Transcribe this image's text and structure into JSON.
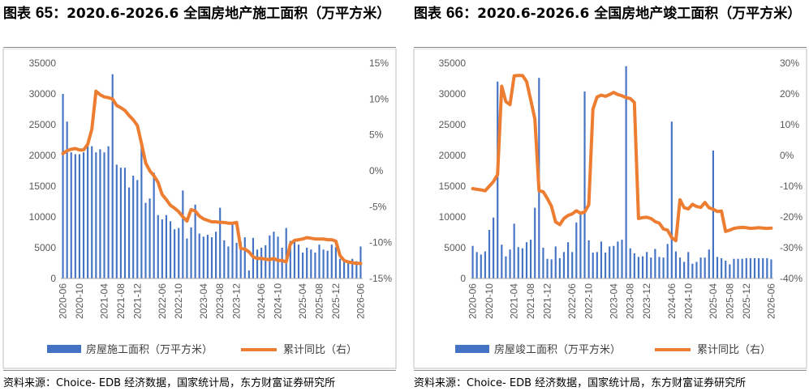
{
  "chart_data": [
    {
      "type": "bar+line",
      "title": "图表 65：2020.6-2026.6 全国房地产施工面积（万平方米）",
      "title_number": "65",
      "title_text": "2020.6-2026.6 全国房地产施工面积（万平方米）",
      "x": [
        "2020-06",
        "2020-07",
        "2020-08",
        "2020-09",
        "2020-10",
        "2020-11",
        "2020-12",
        "2021-01",
        "2021-02",
        "2021-03",
        "2021-04",
        "2021-05",
        "2021-06",
        "2021-07",
        "2021-08",
        "2021-09",
        "2021-10",
        "2021-11",
        "2021-12",
        "2022-01",
        "2022-02",
        "2022-03",
        "2022-04",
        "2022-05",
        "2022-06",
        "2022-07",
        "2022-08",
        "2022-09",
        "2022-10",
        "2022-11",
        "2022-12",
        "2023-01",
        "2023-02",
        "2023-03",
        "2023-04",
        "2023-05",
        "2023-06",
        "2023-07",
        "2023-08",
        "2023-09",
        "2023-10",
        "2023-11",
        "2023-12",
        "2024-01",
        "2024-02",
        "2024-03",
        "2024-04",
        "2024-05",
        "2024-06",
        "2024-07",
        "2024-08",
        "2024-09",
        "2024-10",
        "2024-11",
        "2024-12",
        "2025-01",
        "2025-02",
        "2025-03",
        "2025-04",
        "2025-05",
        "2025-06",
        "2025-07",
        "2025-08",
        "2025-09",
        "2025-10",
        "2025-11",
        "2025-12",
        "2026-01",
        "2026-02",
        "2026-03",
        "2026-04",
        "2026-05",
        "2026-06"
      ],
      "xtick_labels": [
        "2020-06",
        "2020-10",
        "2021-04",
        "2021-08",
        "2021-12",
        "2022-06",
        "2022-10",
        "2023-04",
        "2023-08",
        "2023-12",
        "2024-06",
        "2024-10",
        "2025-04",
        "2025-08",
        "2025-12",
        "2026-06"
      ],
      "xtick_indices": [
        0,
        4,
        10,
        14,
        18,
        24,
        28,
        34,
        38,
        42,
        48,
        52,
        58,
        62,
        66,
        72
      ],
      "series": [
        {
          "name": "房屋施工面积（万平方米）",
          "axis": "left",
          "type": "bar",
          "color": "#4472C4",
          "values": [
            30000,
            25500,
            20500,
            20200,
            20200,
            20500,
            22000,
            21500,
            20500,
            21000,
            20500,
            21500,
            33200,
            18500,
            18000,
            18000,
            14800,
            16700,
            16000,
            21700,
            12300,
            13000,
            17200,
            10300,
            9600,
            10300,
            9300,
            8000,
            8200,
            14300,
            6500,
            8300,
            12000,
            7300,
            6800,
            7100,
            6700,
            7600,
            11500,
            6200,
            5200,
            9000,
            5800,
            6000,
            6700,
            1300,
            6600,
            4700,
            5000,
            5400,
            7000,
            7600,
            6800,
            5000,
            8200,
            6100,
            6000,
            5500,
            4200,
            5000,
            4700,
            4200,
            5500,
            4700,
            4500,
            5500,
            5100,
            3200,
            3000,
            2800,
            3200,
            2800,
            5200
          ]
        },
        {
          "name": "累计同比（右）",
          "axis": "right",
          "type": "line",
          "color": "#ED7D31",
          "values": [
            2.4,
            2.8,
            3.0,
            3.1,
            2.9,
            2.9,
            3.7,
            5.8,
            11.1,
            10.6,
            10.3,
            10.2,
            10.0,
            9.1,
            8.8,
            8.4,
            7.7,
            7.1,
            6.3,
            3.8,
            1.1,
            0,
            -0.7,
            -1.6,
            -3.3,
            -4.0,
            -4.8,
            -5.2,
            -5.7,
            -6.4,
            -7.0,
            -5.4,
            -5.6,
            -6.3,
            -6.7,
            -6.9,
            -7.1,
            -7.1,
            -7.2,
            -7.2,
            -7.3,
            -7.3,
            -7.2,
            -10.8,
            -10.9,
            -11.3,
            -12.0,
            -12.2,
            -12.2,
            -12.3,
            -12.4,
            -12.2,
            -12.5,
            -12.5,
            -12.7,
            -10.2,
            -9.7,
            -9.6,
            -9.5,
            -9.3,
            -9.4,
            -9.5,
            -9.5,
            -9.5,
            -9.6,
            -9.6,
            -9.8,
            -11.8,
            -12.5,
            -12.7,
            -12.8,
            -12.9,
            -12.9
          ]
        }
      ],
      "ylim_left": [
        0,
        35000
      ],
      "yticks_left": [
        "0",
        "5000",
        "10000",
        "15000",
        "20000",
        "25000",
        "30000",
        "35000"
      ],
      "ylim_right": [
        -15,
        15
      ],
      "yticks_right": [
        "-15%",
        "-10%",
        "-5%",
        "0%",
        "5%",
        "10%",
        "15%"
      ],
      "legend_position": "bottom",
      "source": "资料来源：Choice- EDB 经济数据，国家统计局，东方财富证券研究所"
    },
    {
      "type": "bar+line",
      "title": "图表 66：2020.6-2026.6 全国房地产竣工面积（万平方米）",
      "title_number": "66",
      "title_text": "2020.6-2026.6 全国房地产竣工面积（万平方米）",
      "x": [
        "2020-06",
        "2020-07",
        "2020-08",
        "2020-09",
        "2020-10",
        "2020-11",
        "2020-12",
        "2021-01",
        "2021-02",
        "2021-03",
        "2021-04",
        "2021-05",
        "2021-06",
        "2021-07",
        "2021-08",
        "2021-09",
        "2021-10",
        "2021-11",
        "2021-12",
        "2022-01",
        "2022-02",
        "2022-03",
        "2022-04",
        "2022-05",
        "2022-06",
        "2022-07",
        "2022-08",
        "2022-09",
        "2022-10",
        "2022-11",
        "2022-12",
        "2023-01",
        "2023-02",
        "2023-03",
        "2023-04",
        "2023-05",
        "2023-06",
        "2023-07",
        "2023-08",
        "2023-09",
        "2023-10",
        "2023-11",
        "2023-12",
        "2024-01",
        "2024-02",
        "2024-03",
        "2024-04",
        "2024-05",
        "2024-06",
        "2024-07",
        "2024-08",
        "2024-09",
        "2024-10",
        "2024-11",
        "2024-12",
        "2025-01",
        "2025-02",
        "2025-03",
        "2025-04",
        "2025-05",
        "2025-06",
        "2025-07",
        "2025-08",
        "2025-09",
        "2025-10",
        "2025-11",
        "2025-12",
        "2026-01",
        "2026-02",
        "2026-03",
        "2026-04",
        "2026-05",
        "2026-06"
      ],
      "xtick_labels": [
        "2020-06",
        "2020-10",
        "2021-04",
        "2021-08",
        "2021-12",
        "2022-06",
        "2022-10",
        "2023-04",
        "2023-08",
        "2023-12",
        "2024-06",
        "2024-10",
        "2025-04",
        "2025-08",
        "2025-12",
        "2026-06"
      ],
      "xtick_indices": [
        0,
        4,
        10,
        14,
        18,
        24,
        28,
        34,
        38,
        42,
        48,
        52,
        58,
        62,
        66,
        72
      ],
      "series": [
        {
          "name": "房屋竣工面积（万平方米）",
          "axis": "left",
          "type": "bar",
          "color": "#4472C4",
          "values": [
            5300,
            4300,
            3900,
            4400,
            7900,
            9900,
            32000,
            5500,
            3600,
            4700,
            8900,
            5100,
            4900,
            5900,
            6300,
            11500,
            32600,
            5000,
            3200,
            3100,
            5200,
            3300,
            4300,
            5900,
            4300,
            9100,
            10900,
            30400,
            6200,
            4200,
            4300,
            6000,
            4200,
            5200,
            5300,
            6000,
            6300,
            34500,
            4900,
            4100,
            3500,
            3600,
            4300,
            3400,
            4800,
            3500,
            3400,
            5600,
            25500,
            4400,
            3400,
            2700,
            4300,
            2400,
            2700,
            3400,
            3400,
            4700,
            20800,
            3500,
            3300,
            2900,
            2300,
            3200,
            3200,
            3200,
            3300,
            3300,
            3300,
            3300,
            3300,
            3300,
            3100
          ]
        },
        {
          "name": "累计同比（右）",
          "axis": "right",
          "type": "line",
          "color": "#ED7D31",
          "values": [
            -10.8,
            -11.0,
            -11.2,
            -11.5,
            -10.0,
            -8.5,
            -6.2,
            22.5,
            17.5,
            16.5,
            25.9,
            26.0,
            26.0,
            24.0,
            18.0,
            11.8,
            -11.5,
            -11.8,
            -14.0,
            -16.5,
            -21.6,
            -22.5,
            -20.5,
            -19.5,
            -19.0,
            -18.0,
            -18.8,
            -18.4,
            -16.0,
            15.0,
            19.0,
            19.6,
            19.2,
            19.8,
            20.5,
            19.8,
            19.4,
            18.8,
            18.5,
            17.2,
            -20.5,
            -20.2,
            -20.1,
            -20.5,
            -21.5,
            -22.0,
            -23.9,
            -24.3,
            -26.7,
            -27.7,
            -14.4,
            -17.0,
            -17.4,
            -15.9,
            -16.6,
            -16.9,
            -15.3,
            -17.0,
            -17.5,
            -18.2,
            -18.1,
            -24.7,
            -24.3,
            -23.7,
            -23.5,
            -23.4,
            -23.5,
            -23.7,
            -23.6,
            -23.5,
            -23.6,
            -23.7,
            -23.6
          ]
        }
      ],
      "ylim_left": [
        0,
        35000
      ],
      "yticks_left": [
        "0",
        "5000",
        "10000",
        "15000",
        "20000",
        "25000",
        "30000",
        "35000"
      ],
      "ylim_right": [
        -40,
        30
      ],
      "yticks_right": [
        "-40%",
        "-30%",
        "-20%",
        "-10%",
        "0%",
        "10%",
        "20%",
        "30%"
      ],
      "legend_position": "bottom",
      "source": "资料来源：Choice- EDB 经济数据，国家统计局，东方财富证券研究所"
    }
  ]
}
